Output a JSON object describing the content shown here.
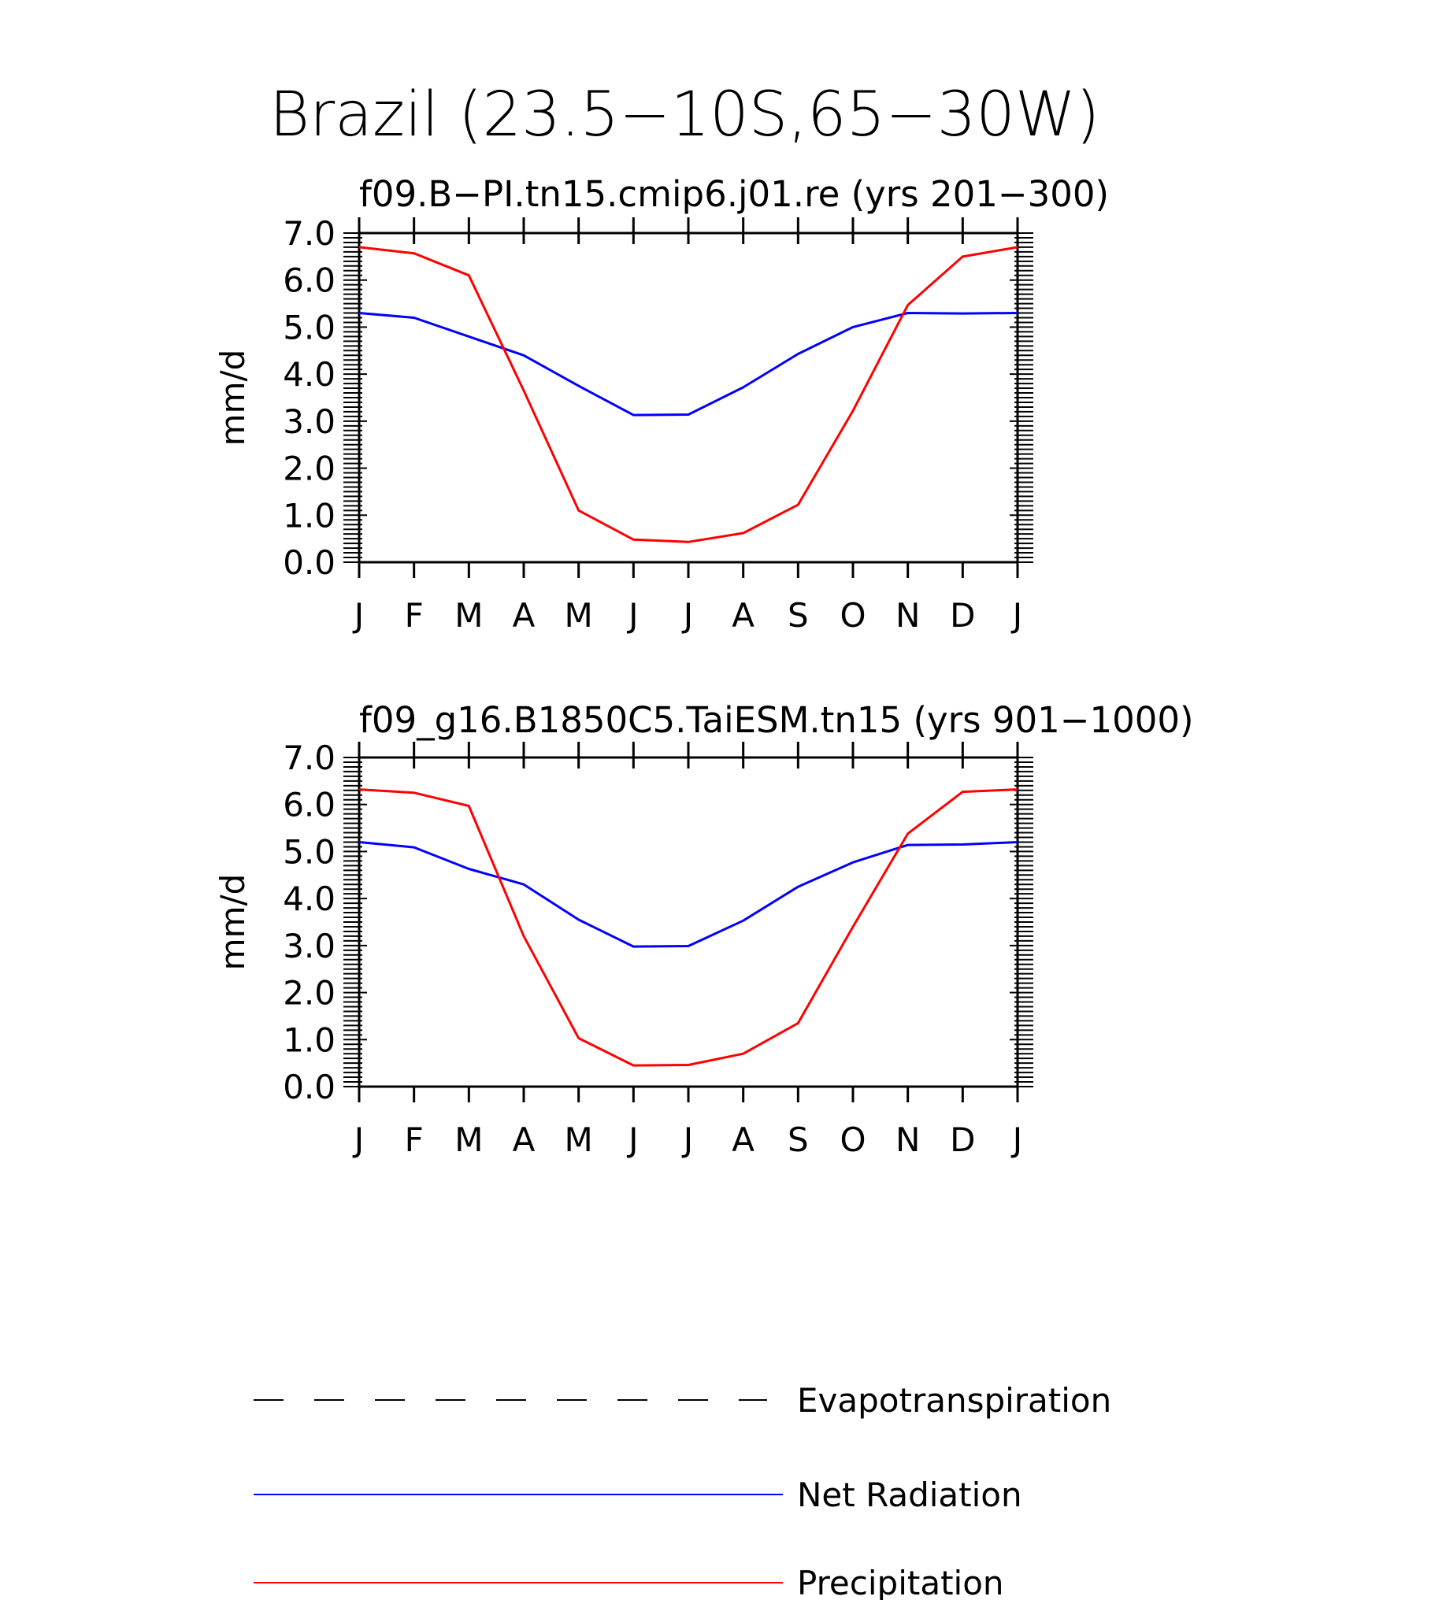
{
  "figure": {
    "title": "Brazil (23.5−10S,65−30W)"
  },
  "colors": {
    "net_radiation": "#0000ff",
    "precipitation": "#ff0000",
    "evapotranspiration": "#000000",
    "axes": "#000000"
  },
  "chart_data": [
    {
      "type": "line",
      "title": "f09.B−PI.tn15.cmip6.j01.re (yrs 201−300)",
      "xlabel": "",
      "ylabel": "mm/d",
      "ylim": [
        0,
        7
      ],
      "yticks": [
        "0.0",
        "1.0",
        "2.0",
        "3.0",
        "4.0",
        "5.0",
        "6.0",
        "7.0"
      ],
      "categories": [
        "J",
        "F",
        "M",
        "A",
        "M",
        "J",
        "J",
        "A",
        "S",
        "O",
        "N",
        "D",
        "J"
      ],
      "grid": false,
      "series": [
        {
          "name": "Net Radiation",
          "color": "#0000ff",
          "values": [
            5.3,
            5.2,
            4.8,
            4.4,
            3.75,
            3.13,
            3.14,
            3.72,
            4.43,
            5.0,
            5.3,
            5.29,
            5.3
          ]
        },
        {
          "name": "Precipitation",
          "color": "#ff0000",
          "values": [
            6.7,
            6.57,
            6.1,
            3.65,
            1.1,
            0.48,
            0.43,
            0.62,
            1.22,
            3.22,
            5.47,
            6.5,
            6.7
          ]
        }
      ]
    },
    {
      "type": "line",
      "title": "f09_g16.B1850C5.TaiESM.tn15 (yrs 901−1000)",
      "xlabel": "",
      "ylabel": "mm/d",
      "ylim": [
        0,
        7
      ],
      "yticks": [
        "0.0",
        "1.0",
        "2.0",
        "3.0",
        "4.0",
        "5.0",
        "6.0",
        "7.0"
      ],
      "categories": [
        "J",
        "F",
        "M",
        "A",
        "M",
        "J",
        "J",
        "A",
        "S",
        "O",
        "N",
        "D",
        "J"
      ],
      "grid": false,
      "series": [
        {
          "name": "Net Radiation",
          "color": "#0000ff",
          "values": [
            5.2,
            5.09,
            4.63,
            4.3,
            3.55,
            2.98,
            2.99,
            3.53,
            4.25,
            4.77,
            5.14,
            5.15,
            5.2
          ]
        },
        {
          "name": "Precipitation",
          "color": "#ff0000",
          "values": [
            6.32,
            6.25,
            5.97,
            3.2,
            1.03,
            0.45,
            0.46,
            0.7,
            1.35,
            3.4,
            5.38,
            6.27,
            6.32
          ]
        }
      ]
    }
  ],
  "legend": {
    "placement": "bottom",
    "items": [
      {
        "label": "Evapotranspiration",
        "style": "dashed",
        "color": "#000000"
      },
      {
        "label": "Net Radiation",
        "style": "solid",
        "color": "#0000ff"
      },
      {
        "label": "Precipitation",
        "style": "solid",
        "color": "#ff0000"
      }
    ]
  }
}
